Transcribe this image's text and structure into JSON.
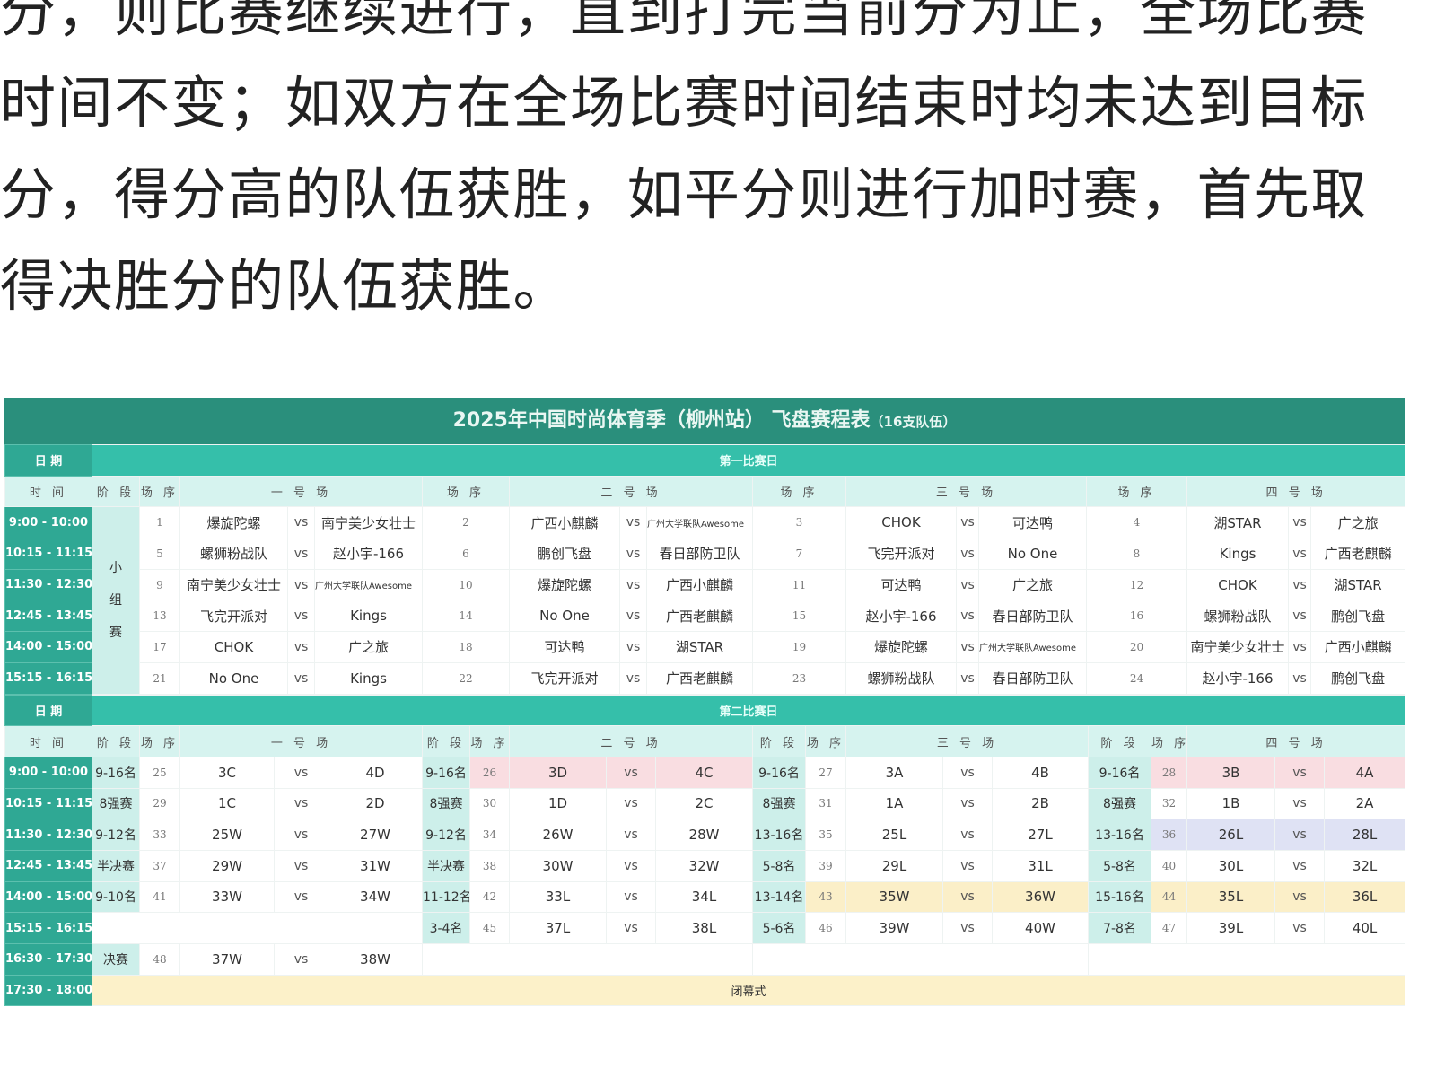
{
  "paragraph": [
    "分，则比赛继续进行，直到打完当前分为止，全场比赛",
    "时间不变；如双方在全场比赛时间结束时均未达到目标",
    "分，得分高的队伍获胜，如平分则进行加时赛，首先取",
    "得决胜分的队伍获胜。"
  ],
  "schedule": {
    "title": "2025年中国时尚体育季（柳州站） 飞盘赛程表",
    "title_note": "（16支队伍）",
    "date_label": "日 期",
    "time_label": "时 间",
    "stage_label": "阶 段",
    "no_label": "场 序",
    "vs": "vs",
    "fields": [
      "一 号 场",
      "二 号 场",
      "三 号 场",
      "四 号 场"
    ],
    "colors": {
      "title_bg": "#2a8f7c",
      "date_bg": "#35bfaa",
      "time_bg": "#2fa894",
      "header_bg": "#d6f3ef",
      "stage_bg": "#cdefea",
      "pink": "#f9dde1",
      "lavender": "#dfe2f4",
      "yellow": "#fbefc8"
    },
    "day1": {
      "label": "第一比赛日",
      "stage": "小组赛",
      "rows": [
        {
          "time": "9:00 - 10:00",
          "m": [
            [
              "1",
              "爆旋陀螺",
              "南宁美少女壮士"
            ],
            [
              "2",
              "广西小麒麟",
              "广州大学联队Awesome"
            ],
            [
              "3",
              "CHOK",
              "可达鸭"
            ],
            [
              "4",
              "湖STAR",
              "广之旅"
            ]
          ]
        },
        {
          "time": "10:15 - 11:15",
          "m": [
            [
              "5",
              "螺狮粉战队",
              "赵小宇-166"
            ],
            [
              "6",
              "鹏创飞盘",
              "春日部防卫队"
            ],
            [
              "7",
              "飞完开派对",
              "No One"
            ],
            [
              "8",
              "Kings",
              "广西老麒麟"
            ]
          ]
        },
        {
          "time": "11:30 - 12:30",
          "m": [
            [
              "9",
              "南宁美少女壮士",
              "广州大学联队Awesome"
            ],
            [
              "10",
              "爆旋陀螺",
              "广西小麒麟"
            ],
            [
              "11",
              "可达鸭",
              "广之旅"
            ],
            [
              "12",
              "CHOK",
              "湖STAR"
            ]
          ]
        },
        {
          "time": "12:45 - 13:45",
          "m": [
            [
              "13",
              "飞完开派对",
              "Kings"
            ],
            [
              "14",
              "No One",
              "广西老麒麟"
            ],
            [
              "15",
              "赵小宇-166",
              "春日部防卫队"
            ],
            [
              "16",
              "螺狮粉战队",
              "鹏创飞盘"
            ]
          ]
        },
        {
          "time": "14:00 - 15:00",
          "m": [
            [
              "17",
              "CHOK",
              "广之旅"
            ],
            [
              "18",
              "可达鸭",
              "湖STAR"
            ],
            [
              "19",
              "爆旋陀螺",
              "广州大学联队Awesome"
            ],
            [
              "20",
              "南宁美少女壮士",
              "广西小麒麟"
            ]
          ]
        },
        {
          "time": "15:15 - 16:15",
          "m": [
            [
              "21",
              "No One",
              "Kings"
            ],
            [
              "22",
              "飞完开派对",
              "广西老麒麟"
            ],
            [
              "23",
              "螺狮粉战队",
              "春日部防卫队"
            ],
            [
              "24",
              "赵小宇-166",
              "鹏创飞盘"
            ]
          ]
        }
      ]
    },
    "day2": {
      "label": "第二比赛日",
      "closing_time": "17:30 - 18:00",
      "closing": "闭幕式",
      "rows": [
        {
          "time": "9:00 - 10:00",
          "m": [
            [
              "9-16名",
              "25",
              "3C",
              "4D",
              ""
            ],
            [
              "9-16名",
              "26",
              "3D",
              "4C",
              "pink"
            ],
            [
              "9-16名",
              "27",
              "3A",
              "4B",
              ""
            ],
            [
              "9-16名",
              "28",
              "3B",
              "4A",
              "pink"
            ]
          ]
        },
        {
          "time": "10:15 - 11:15",
          "m": [
            [
              "8强赛",
              "29",
              "1C",
              "2D",
              ""
            ],
            [
              "8强赛",
              "30",
              "1D",
              "2C",
              ""
            ],
            [
              "8强赛",
              "31",
              "1A",
              "2B",
              ""
            ],
            [
              "8强赛",
              "32",
              "1B",
              "2A",
              ""
            ]
          ]
        },
        {
          "time": "11:30 - 12:30",
          "m": [
            [
              "9-12名",
              "33",
              "25W",
              "27W",
              ""
            ],
            [
              "9-12名",
              "34",
              "26W",
              "28W",
              ""
            ],
            [
              "13-16名",
              "35",
              "25L",
              "27L",
              ""
            ],
            [
              "13-16名",
              "36",
              "26L",
              "28L",
              "lav"
            ]
          ]
        },
        {
          "time": "12:45 - 13:45",
          "m": [
            [
              "半决赛",
              "37",
              "29W",
              "31W",
              ""
            ],
            [
              "半决赛",
              "38",
              "30W",
              "32W",
              ""
            ],
            [
              "5-8名",
              "39",
              "29L",
              "31L",
              ""
            ],
            [
              "5-8名",
              "40",
              "30L",
              "32L",
              ""
            ]
          ]
        },
        {
          "time": "14:00 - 15:00",
          "m": [
            [
              "9-10名",
              "41",
              "33W",
              "34W",
              ""
            ],
            [
              "11-12名",
              "42",
              "33L",
              "34L",
              ""
            ],
            [
              "13-14名",
              "43",
              "35W",
              "36W",
              "yel"
            ],
            [
              "15-16名",
              "44",
              "35L",
              "36L",
              "yel"
            ]
          ]
        },
        {
          "time": "15:15 - 16:15",
          "m": [
            null,
            [
              "3-4名",
              "45",
              "37L",
              "38L",
              ""
            ],
            [
              "5-6名",
              "46",
              "39W",
              "40W",
              ""
            ],
            [
              "7-8名",
              "47",
              "39L",
              "40L",
              ""
            ]
          ]
        },
        {
          "time": "16:30 - 17:30",
          "m": [
            [
              "决赛",
              "48",
              "37W",
              "38W",
              ""
            ],
            null,
            null,
            null
          ]
        }
      ]
    }
  }
}
